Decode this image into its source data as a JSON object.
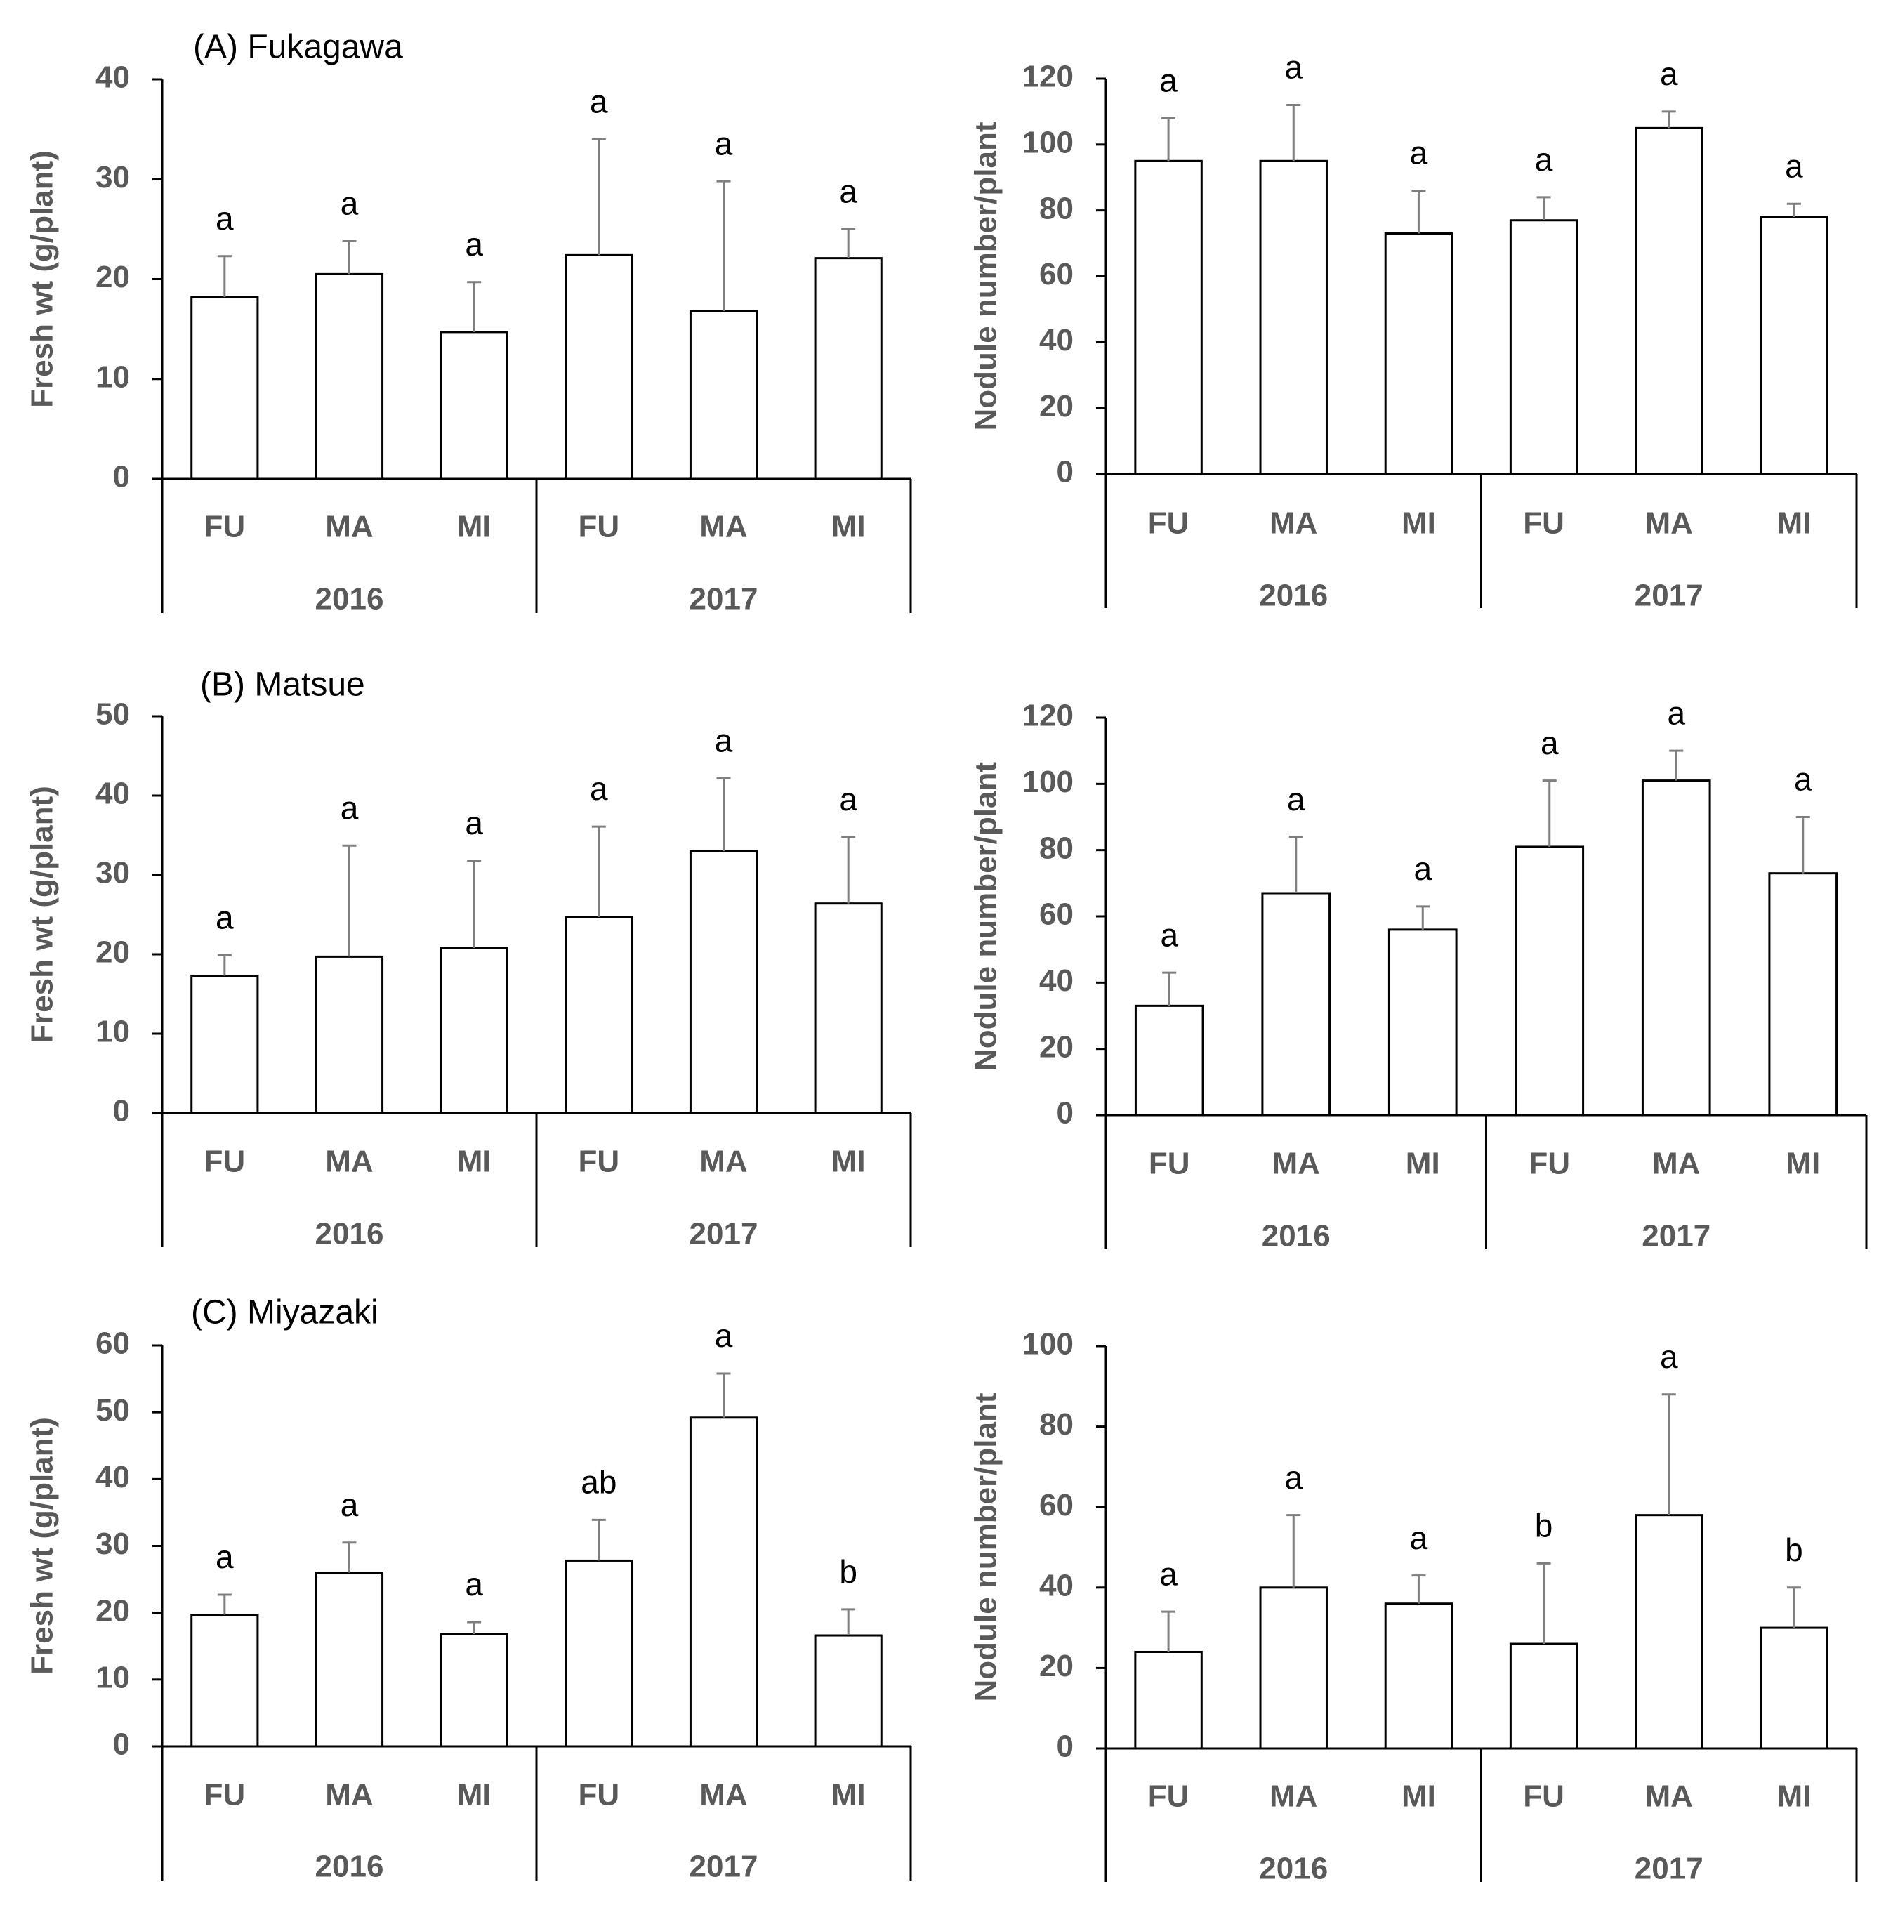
{
  "colors": {
    "axis": "#000000",
    "text": "#595959",
    "bar_fill": "#ffffff",
    "bar_stroke": "#000000",
    "error": "#7f7f7f"
  },
  "chart_data": [
    {
      "type": "bar",
      "title": "(A) Fukagawa",
      "ylabel": "Fresh wt (g/plant)",
      "ylim": [
        0,
        40
      ],
      "yticks": [
        0,
        10,
        20,
        30,
        40
      ],
      "categories": [
        "FU",
        "MA",
        "MI",
        "FU",
        "MA",
        "MI"
      ],
      "groups": [
        {
          "label": "2016",
          "size": 3
        },
        {
          "label": "2017",
          "size": 3
        }
      ],
      "values": [
        18.2,
        20.5,
        14.7,
        22.4,
        16.8,
        22.1
      ],
      "errors": [
        4.1,
        3.3,
        5.0,
        11.6,
        13.0,
        2.9
      ],
      "significance": [
        "a",
        "a",
        "a",
        "a",
        "a",
        "a"
      ]
    },
    {
      "type": "bar",
      "title": "",
      "ylabel": "Nodule number/plant",
      "ylim": [
        0,
        120
      ],
      "yticks": [
        0,
        20,
        40,
        60,
        80,
        100,
        120
      ],
      "categories": [
        "FU",
        "MA",
        "MI",
        "FU",
        "MA",
        "MI"
      ],
      "groups": [
        {
          "label": "2016",
          "size": 3
        },
        {
          "label": "2017",
          "size": 3
        }
      ],
      "values": [
        95,
        95,
        73,
        77,
        105,
        78
      ],
      "errors": [
        13,
        17,
        13,
        7,
        5,
        4
      ],
      "significance": [
        "a",
        "a",
        "a",
        "a",
        "a",
        "a"
      ]
    },
    {
      "type": "bar",
      "title": "(B) Matsue",
      "ylabel": "Fresh wt (g/plant)",
      "ylim": [
        0,
        50
      ],
      "yticks": [
        0,
        10,
        20,
        30,
        40,
        50
      ],
      "categories": [
        "FU",
        "MA",
        "MI",
        "FU",
        "MA",
        "MI"
      ],
      "groups": [
        {
          "label": "2016",
          "size": 3
        },
        {
          "label": "2017",
          "size": 3
        }
      ],
      "values": [
        17.3,
        19.7,
        20.8,
        24.7,
        33.0,
        26.4
      ],
      "errors": [
        2.6,
        14.0,
        11.0,
        11.4,
        9.2,
        8.4
      ],
      "significance": [
        "a",
        "a",
        "a",
        "a",
        "a",
        "a"
      ]
    },
    {
      "type": "bar",
      "title": "",
      "ylabel": "Nodule number/plant",
      "ylim": [
        0,
        120
      ],
      "yticks": [
        0,
        20,
        40,
        60,
        80,
        100,
        120
      ],
      "categories": [
        "FU",
        "MA",
        "MI",
        "FU",
        "MA",
        "MI"
      ],
      "groups": [
        {
          "label": "2016",
          "size": 3
        },
        {
          "label": "2017",
          "size": 3
        }
      ],
      "values": [
        33,
        67,
        56,
        81,
        101,
        73
      ],
      "errors": [
        10,
        17,
        7,
        20,
        9,
        17
      ],
      "significance": [
        "a",
        "a",
        "a",
        "a",
        "a",
        "a"
      ]
    },
    {
      "type": "bar",
      "title": "(C) Miyazaki",
      "ylabel": "Fresh wt (g/plant)",
      "ylim": [
        0,
        60
      ],
      "yticks": [
        0,
        10,
        20,
        30,
        40,
        50,
        60
      ],
      "categories": [
        "FU",
        "MA",
        "MI",
        "FU",
        "MA",
        "MI"
      ],
      "groups": [
        {
          "label": "2016",
          "size": 3
        },
        {
          "label": "2017",
          "size": 3
        }
      ],
      "values": [
        19.7,
        26.0,
        16.8,
        27.8,
        49.2,
        16.6
      ],
      "errors": [
        3.0,
        4.5,
        1.8,
        6.1,
        6.6,
        3.9
      ],
      "significance": [
        "a",
        "a",
        "a",
        "ab",
        "a",
        "b"
      ]
    },
    {
      "type": "bar",
      "title": "",
      "ylabel": "Nodule number/plant",
      "ylim": [
        0,
        100
      ],
      "yticks": [
        0,
        20,
        40,
        60,
        80,
        100
      ],
      "categories": [
        "FU",
        "MA",
        "MI",
        "FU",
        "MA",
        "MI"
      ],
      "groups": [
        {
          "label": "2016",
          "size": 3
        },
        {
          "label": "2017",
          "size": 3
        }
      ],
      "values": [
        24,
        40,
        36,
        26,
        58,
        30
      ],
      "errors": [
        10,
        18,
        7,
        20,
        30,
        10
      ],
      "significance": [
        "a",
        "a",
        "a",
        "b",
        "a",
        "b"
      ]
    }
  ]
}
